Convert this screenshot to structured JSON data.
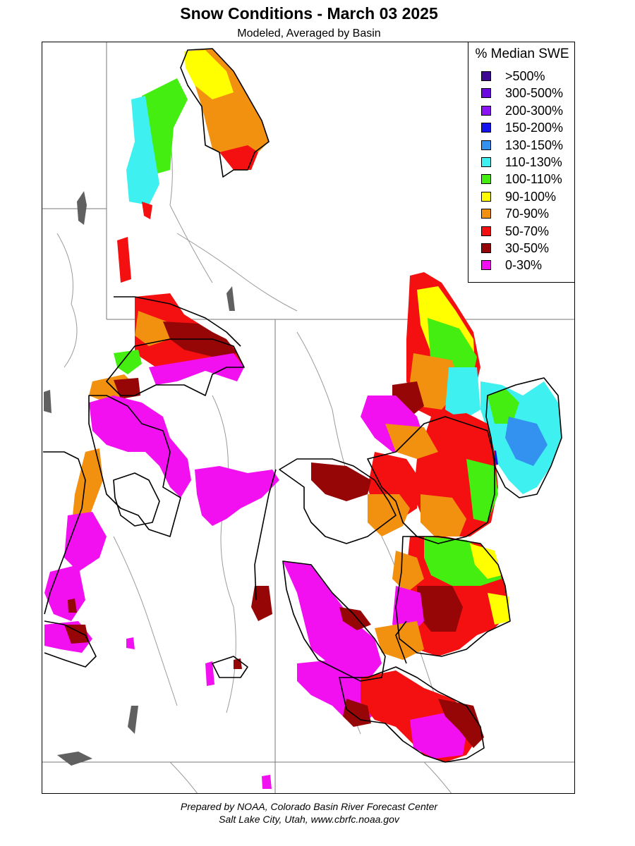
{
  "header": {
    "title": "Snow Conditions - March 03 2025",
    "subtitle": "Modeled, Averaged by Basin"
  },
  "legend": {
    "title": "% Median SWE",
    "items": [
      {
        "label": ">500%",
        "color": "#3d0a91"
      },
      {
        "label": "300-500%",
        "color": "#6a0ae0"
      },
      {
        "label": "200-300%",
        "color": "#8a12f5"
      },
      {
        "label": "150-200%",
        "color": "#1414f0"
      },
      {
        "label": "130-150%",
        "color": "#3391f0"
      },
      {
        "label": "110-130%",
        "color": "#3ff0f0"
      },
      {
        "label": "100-110%",
        "color": "#44ee10"
      },
      {
        "label": "90-100%",
        "color": "#ffff00"
      },
      {
        "label": "70-90%",
        "color": "#f29010"
      },
      {
        "label": "50-70%",
        "color": "#f41010"
      },
      {
        "label": "30-50%",
        "color": "#960606"
      },
      {
        "label": "0-30%",
        "color": "#f210f0"
      }
    ]
  },
  "footer": {
    "line1": "Prepared by NOAA, Colorado Basin River Forecast Center",
    "line2": "Salt Lake City, Utah, www.cbrfc.noaa.gov"
  }
}
